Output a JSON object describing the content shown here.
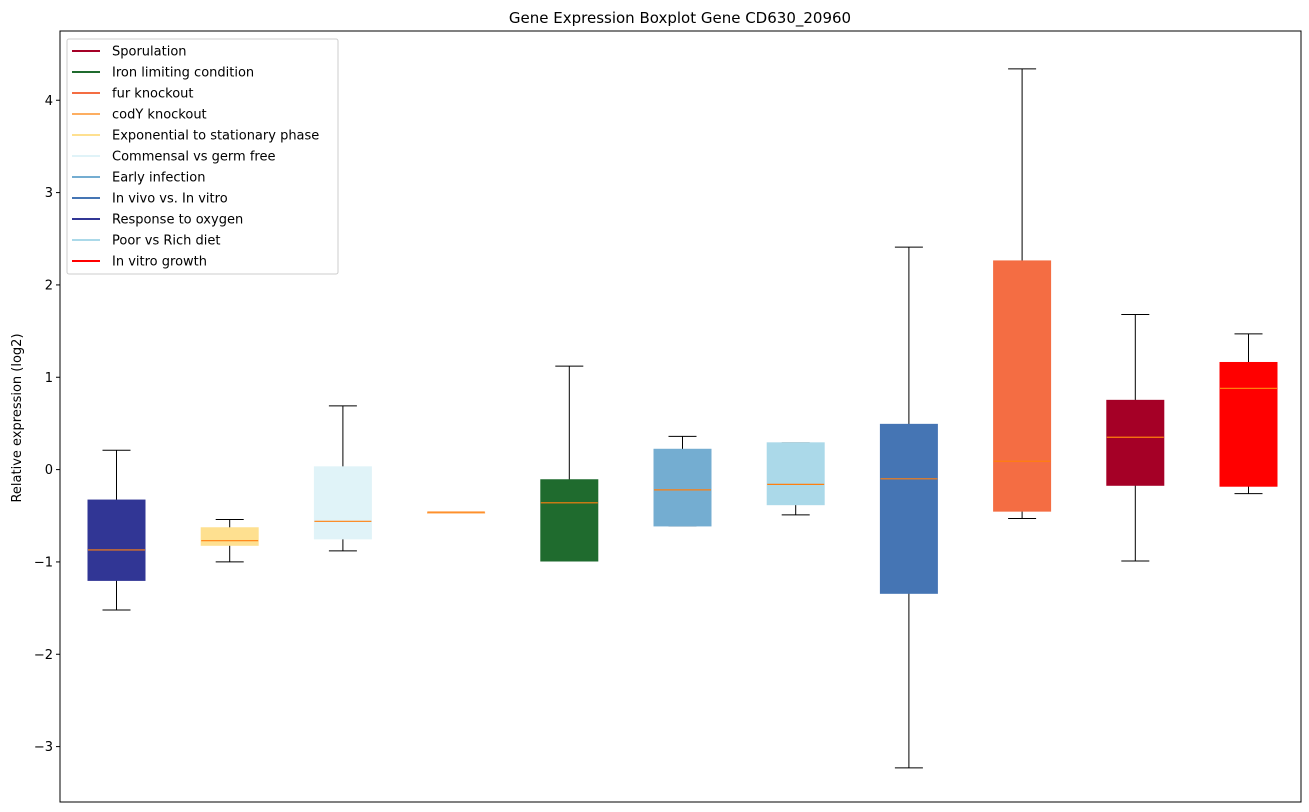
{
  "chart_data": {
    "type": "boxplot",
    "title": "Gene Expression Boxplot Gene CD630_20960",
    "xlabel": "",
    "ylabel": "Relative expression (log2)",
    "ylim": [
      -3.6,
      4.75
    ],
    "yticks": [
      -3,
      -2,
      -1,
      0,
      1,
      2,
      3,
      4
    ],
    "ytick_labels": [
      "−3",
      "−2",
      "−1",
      "0",
      "1",
      "2",
      "3",
      "4"
    ],
    "grid": false,
    "legend_location": "upper-left",
    "legend": [
      {
        "label": "Sporulation",
        "color": "#a50026"
      },
      {
        "label": "Iron limiting condition",
        "color": "#1f6b2e"
      },
      {
        "label": "fur knockout",
        "color": "#f46d43"
      },
      {
        "label": "codY knockout",
        "color": "#fdae61"
      },
      {
        "label": "Exponential to stationary phase",
        "color": "#fee090"
      },
      {
        "label": "Commensal vs germ free",
        "color": "#e0f3f8"
      },
      {
        "label": "Early infection",
        "color": "#74add1"
      },
      {
        "label": "In vivo vs. In vitro",
        "color": "#4575b4"
      },
      {
        "label": "Response to oxygen",
        "color": "#313695"
      },
      {
        "label": "Poor vs Rich diet",
        "color": "#abd9e9"
      },
      {
        "label": "In vitro growth",
        "color": "#ff0000"
      }
    ],
    "boxes": [
      {
        "group": "Response to oxygen",
        "color": "#313695",
        "whislo": -1.52,
        "q1": -1.2,
        "med": -0.87,
        "q3": -0.33,
        "whishi": 0.21
      },
      {
        "group": "Exponential to stationary phase",
        "color": "#fee090",
        "whislo": -1.0,
        "q1": -0.82,
        "med": -0.77,
        "q3": -0.63,
        "whishi": -0.54
      },
      {
        "group": "Commensal vs germ free",
        "color": "#e0f3f8",
        "whislo": -0.88,
        "q1": -0.75,
        "med": -0.56,
        "q3": 0.03,
        "whishi": 0.69
      },
      {
        "group": "codY knockout",
        "color": "#fdae61",
        "whislo": -0.46,
        "q1": -0.46,
        "med": -0.46,
        "q3": -0.46,
        "whishi": -0.46
      },
      {
        "group": "Iron limiting condition",
        "color": "#1f6b2e",
        "whislo": -0.99,
        "q1": -0.99,
        "med": -0.36,
        "q3": -0.11,
        "whishi": 1.12
      },
      {
        "group": "Early infection",
        "color": "#74add1",
        "whislo": -0.61,
        "q1": -0.61,
        "med": -0.22,
        "q3": 0.22,
        "whishi": 0.36
      },
      {
        "group": "Poor vs Rich diet",
        "color": "#abd9e9",
        "whislo": -0.49,
        "q1": -0.38,
        "med": -0.16,
        "q3": 0.29,
        "whishi": 0.29
      },
      {
        "group": "In vivo vs. In vitro",
        "color": "#4575b4",
        "whislo": -3.23,
        "q1": -1.34,
        "med": -0.1,
        "q3": 0.49,
        "whishi": 2.41
      },
      {
        "group": "fur knockout",
        "color": "#f46d43",
        "whislo": -0.53,
        "q1": -0.45,
        "med": 0.09,
        "q3": 2.26,
        "whishi": 4.34
      },
      {
        "group": "Sporulation",
        "color": "#a50026",
        "whislo": -0.99,
        "q1": -0.17,
        "med": 0.35,
        "q3": 0.75,
        "whishi": 1.68
      },
      {
        "group": "In vitro growth",
        "color": "#ff0000",
        "whislo": -0.26,
        "q1": -0.18,
        "med": 0.88,
        "q3": 1.16,
        "whishi": 1.47
      }
    ],
    "median_color": "#ff7f0e"
  }
}
